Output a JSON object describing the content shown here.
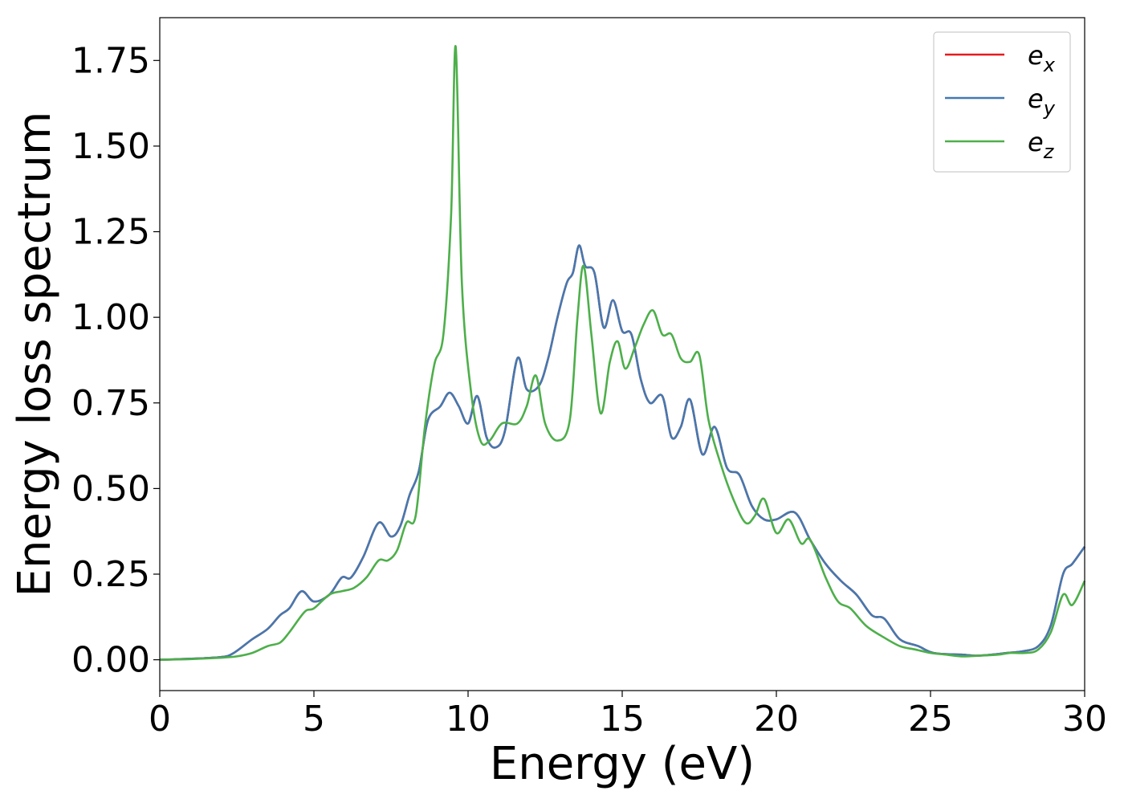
{
  "chart_data": {
    "type": "line",
    "title": "",
    "xlabel": "Energy (eV)",
    "ylabel": "Energy loss spectrum",
    "xlim": [
      0,
      30
    ],
    "ylim": [
      -0.09,
      1.875
    ],
    "xticks": [
      0,
      5,
      10,
      15,
      20,
      25,
      30
    ],
    "xtick_labels": [
      "0",
      "5",
      "10",
      "15",
      "20",
      "25",
      "30"
    ],
    "yticks": [
      0.0,
      0.25,
      0.5,
      0.75,
      1.0,
      1.25,
      1.5,
      1.75
    ],
    "ytick_labels": [
      "0.00",
      "0.25",
      "0.50",
      "0.75",
      "1.00",
      "1.25",
      "1.50",
      "1.75"
    ],
    "grid": false,
    "legend_position": "top-right",
    "series": [
      {
        "name": "e",
        "subscript": "x",
        "color": "#e41a1c",
        "x": [
          0,
          1,
          2,
          2.4,
          3,
          3.5,
          3.9,
          4.2,
          4.6,
          5,
          5.5,
          5.9,
          6.2,
          6.6,
          7.1,
          7.5,
          7.8,
          8.1,
          8.4,
          8.7,
          9.1,
          9.4,
          9.7,
          10,
          10.3,
          10.6,
          10.9,
          11.2,
          11.6,
          11.9,
          12.3,
          12.6,
          12.9,
          13.2,
          13.4,
          13.6,
          13.8,
          14.1,
          14.4,
          14.7,
          15,
          15.3,
          15.6,
          15.9,
          16.3,
          16.6,
          16.9,
          17.2,
          17.6,
          18,
          18.4,
          18.8,
          19.2,
          19.6,
          20,
          20.6,
          21.1,
          21.6,
          22.1,
          22.6,
          23.1,
          23.5,
          24,
          24.6,
          25.1,
          26,
          26.5,
          27,
          27.5,
          28,
          28.5,
          28.9,
          29.3,
          29.6,
          30
        ],
        "values": [
          0.0,
          0.003,
          0.008,
          0.02,
          0.06,
          0.09,
          0.13,
          0.15,
          0.2,
          0.17,
          0.19,
          0.24,
          0.24,
          0.3,
          0.4,
          0.36,
          0.39,
          0.48,
          0.55,
          0.7,
          0.74,
          0.78,
          0.74,
          0.69,
          0.77,
          0.65,
          0.62,
          0.67,
          0.88,
          0.79,
          0.8,
          0.88,
          1.0,
          1.1,
          1.13,
          1.21,
          1.15,
          1.13,
          0.97,
          1.05,
          0.96,
          0.95,
          0.82,
          0.75,
          0.77,
          0.65,
          0.68,
          0.76,
          0.6,
          0.68,
          0.56,
          0.54,
          0.45,
          0.41,
          0.41,
          0.43,
          0.35,
          0.28,
          0.23,
          0.19,
          0.13,
          0.12,
          0.06,
          0.04,
          0.02,
          0.015,
          0.012,
          0.015,
          0.02,
          0.025,
          0.04,
          0.1,
          0.25,
          0.28,
          0.33
        ]
      },
      {
        "name": "e",
        "subscript": "y",
        "color": "#4479b0",
        "x": [
          0,
          1,
          2,
          2.4,
          3,
          3.5,
          3.9,
          4.2,
          4.6,
          5,
          5.5,
          5.9,
          6.2,
          6.6,
          7.1,
          7.5,
          7.8,
          8.1,
          8.4,
          8.7,
          9.1,
          9.4,
          9.7,
          10,
          10.3,
          10.6,
          10.9,
          11.2,
          11.6,
          11.9,
          12.3,
          12.6,
          12.9,
          13.2,
          13.4,
          13.6,
          13.8,
          14.1,
          14.4,
          14.7,
          15,
          15.3,
          15.6,
          15.9,
          16.3,
          16.6,
          16.9,
          17.2,
          17.6,
          18,
          18.4,
          18.8,
          19.2,
          19.6,
          20,
          20.6,
          21.1,
          21.6,
          22.1,
          22.6,
          23.1,
          23.5,
          24,
          24.6,
          25.1,
          26,
          26.5,
          27,
          27.5,
          28,
          28.5,
          28.9,
          29.3,
          29.6,
          30
        ],
        "values": [
          0.0,
          0.003,
          0.008,
          0.02,
          0.06,
          0.09,
          0.13,
          0.15,
          0.2,
          0.17,
          0.19,
          0.24,
          0.24,
          0.3,
          0.4,
          0.36,
          0.39,
          0.48,
          0.55,
          0.7,
          0.74,
          0.78,
          0.74,
          0.69,
          0.77,
          0.65,
          0.62,
          0.67,
          0.88,
          0.79,
          0.8,
          0.88,
          1.0,
          1.1,
          1.13,
          1.21,
          1.15,
          1.13,
          0.97,
          1.05,
          0.96,
          0.95,
          0.82,
          0.75,
          0.77,
          0.65,
          0.68,
          0.76,
          0.6,
          0.68,
          0.56,
          0.54,
          0.45,
          0.41,
          0.41,
          0.43,
          0.35,
          0.28,
          0.23,
          0.19,
          0.13,
          0.12,
          0.06,
          0.04,
          0.02,
          0.015,
          0.012,
          0.015,
          0.02,
          0.025,
          0.04,
          0.1,
          0.25,
          0.28,
          0.33
        ]
      },
      {
        "name": "e",
        "subscript": "z",
        "color": "#4daf4a",
        "x": [
          0,
          1,
          2,
          2.5,
          3,
          3.5,
          3.9,
          4.2,
          4.7,
          5,
          5.5,
          5.9,
          6.3,
          6.7,
          7.1,
          7.4,
          7.7,
          8,
          8.3,
          8.6,
          8.9,
          9.2,
          9.45,
          9.6,
          9.8,
          10.1,
          10.4,
          10.7,
          11.1,
          11.6,
          11.9,
          12.2,
          12.5,
          12.9,
          13.3,
          13.55,
          13.75,
          14,
          14.3,
          14.6,
          14.85,
          15.1,
          15.4,
          15.7,
          16,
          16.3,
          16.6,
          16.9,
          17.2,
          17.5,
          17.8,
          18.2,
          18.6,
          19,
          19.3,
          19.6,
          20,
          20.4,
          20.8,
          21.1,
          21.6,
          22,
          22.4,
          22.9,
          23.4,
          24,
          24.5,
          25,
          25.5,
          26,
          26.6,
          27.2,
          27.6,
          28.1,
          28.5,
          28.9,
          29.3,
          29.6,
          30
        ],
        "values": [
          0.0,
          0.002,
          0.006,
          0.01,
          0.02,
          0.04,
          0.05,
          0.08,
          0.14,
          0.15,
          0.19,
          0.2,
          0.21,
          0.24,
          0.29,
          0.29,
          0.32,
          0.4,
          0.42,
          0.68,
          0.86,
          0.95,
          1.3,
          1.79,
          1.1,
          0.78,
          0.64,
          0.64,
          0.69,
          0.69,
          0.74,
          0.83,
          0.69,
          0.64,
          0.7,
          1.0,
          1.15,
          0.95,
          0.72,
          0.87,
          0.93,
          0.85,
          0.91,
          0.98,
          1.02,
          0.95,
          0.95,
          0.88,
          0.87,
          0.89,
          0.7,
          0.57,
          0.47,
          0.4,
          0.42,
          0.47,
          0.37,
          0.41,
          0.34,
          0.35,
          0.24,
          0.17,
          0.15,
          0.1,
          0.07,
          0.04,
          0.03,
          0.02,
          0.015,
          0.01,
          0.012,
          0.015,
          0.02,
          0.02,
          0.03,
          0.08,
          0.19,
          0.16,
          0.23
        ]
      }
    ]
  }
}
